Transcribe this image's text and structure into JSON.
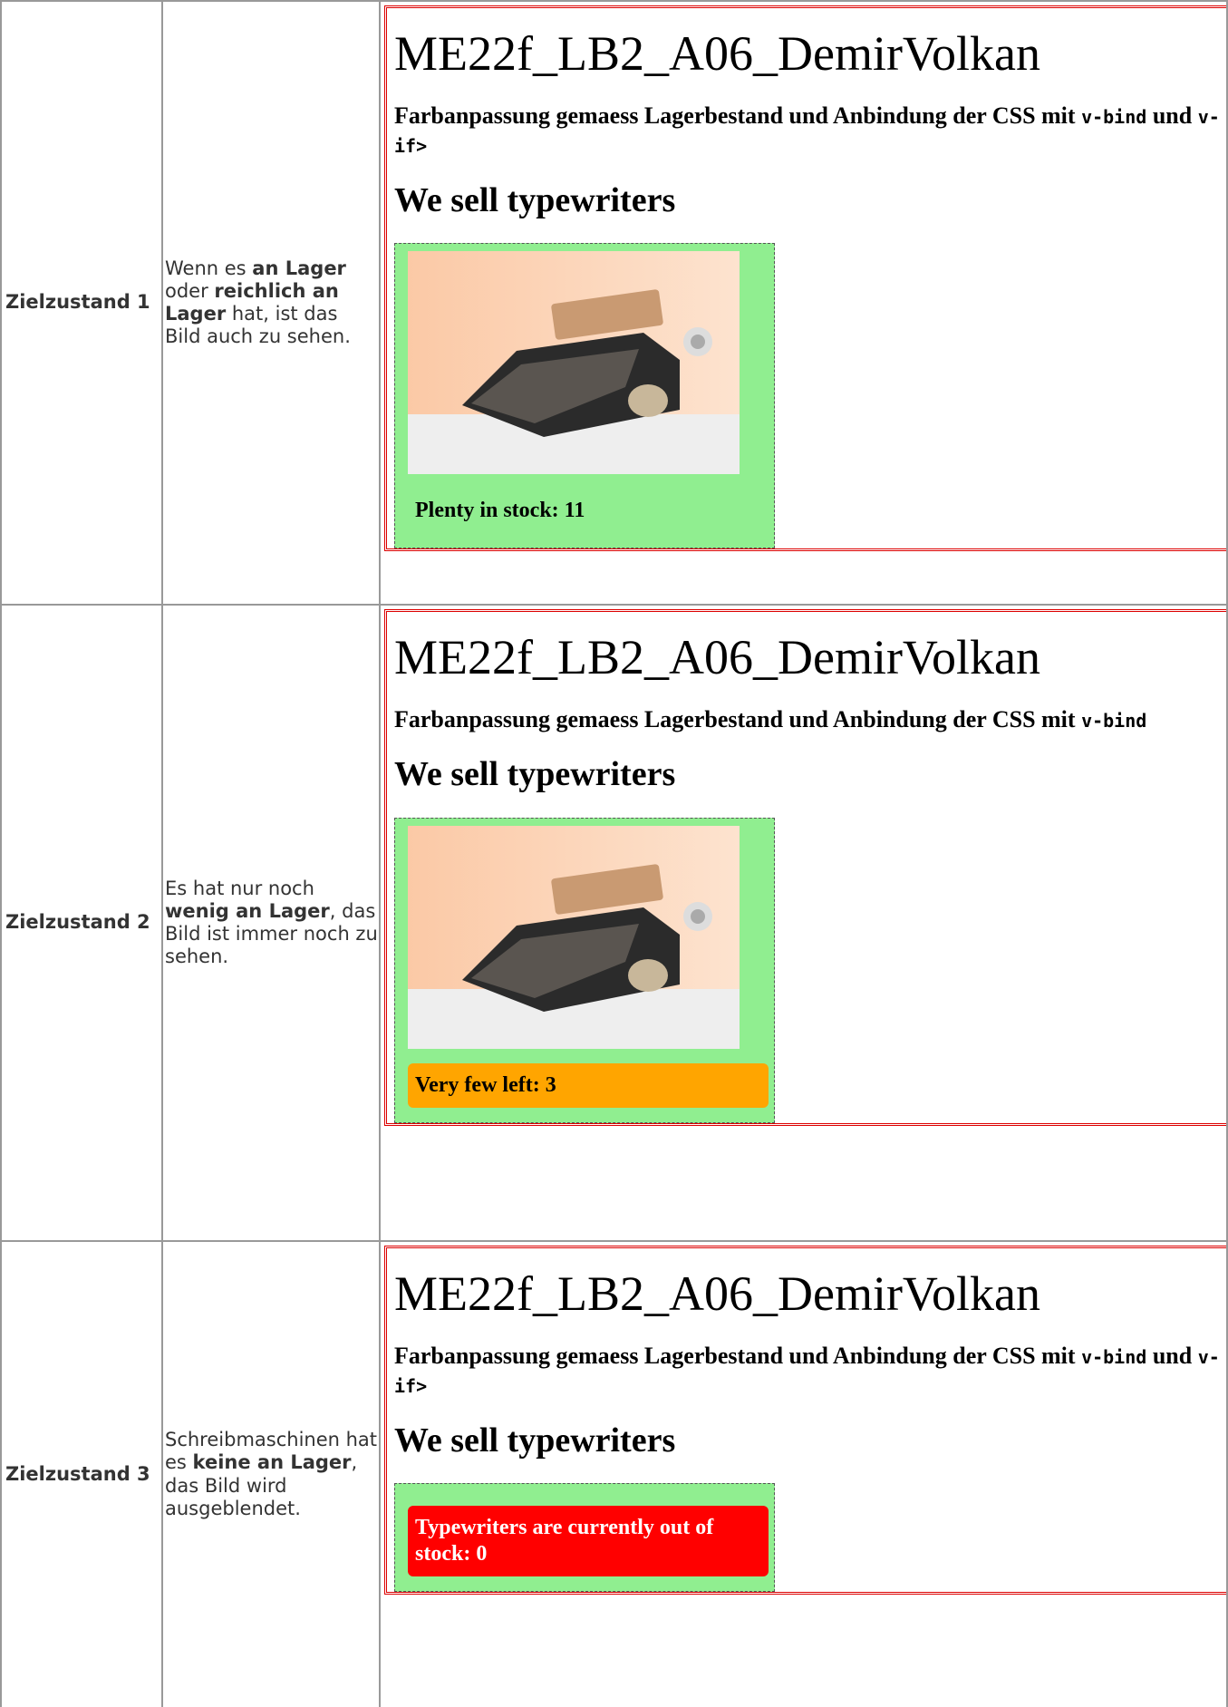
{
  "rows": [
    {
      "label": "Zielzustand 1",
      "description": [
        {
          "text": "Wenn es "
        },
        {
          "text": "an Lager",
          "strong": true
        },
        {
          "text": " oder "
        },
        {
          "text": "reichlich an Lager",
          "strong": true
        },
        {
          "text": " hat, ist das Bild auch zu sehen."
        }
      ],
      "app": {
        "title": "ME22f_LB2_A06_DemirVolkan",
        "subtitle": [
          {
            "text": "Farbanpassung gemaess Lagerbestand und Anbindung der CSS mit "
          },
          {
            "text": "v-bind",
            "code": true
          },
          {
            "text": " und "
          },
          {
            "text": "v-if>",
            "code": true
          }
        ],
        "heading": "We sell typewriters",
        "image": true,
        "stock": "Plenty in stock: 11",
        "stock_color": null
      }
    },
    {
      "label": "Zielzustand 2",
      "description": [
        {
          "text": "Es hat nur noch "
        },
        {
          "text": "wenig an Lager",
          "strong": true
        },
        {
          "text": ", das Bild ist immer noch zu sehen."
        }
      ],
      "app": {
        "title": "ME22f_LB2_A06_DemirVolkan",
        "subtitle": [
          {
            "text": "Farbanpassung gemaess Lagerbestand und Anbindung der CSS mit "
          },
          {
            "text": "v-bind",
            "code": true
          }
        ],
        "heading": "We sell typewriters",
        "image": true,
        "stock": "Very few left: 3",
        "stock_color": "#ffa500"
      }
    },
    {
      "label": "Zielzustand 3",
      "description": [
        {
          "text": "Schreibmaschinen hat es "
        },
        {
          "text": "keine an Lager",
          "strong": true
        },
        {
          "text": ", das Bild wird ausgeblendet."
        }
      ],
      "app": {
        "title": "ME22f_LB2_A06_DemirVolkan",
        "subtitle": [
          {
            "text": "Farbanpassung gemaess Lagerbestand und Anbindung der CSS mit "
          },
          {
            "text": "v-bind",
            "code": true
          },
          {
            "text": " und "
          },
          {
            "text": "v-if>",
            "code": true
          }
        ],
        "heading": "We sell typewriters",
        "image": false,
        "stock": "Typewriters are currently out of stock: 0",
        "stock_color": "#ff0000"
      }
    }
  ]
}
